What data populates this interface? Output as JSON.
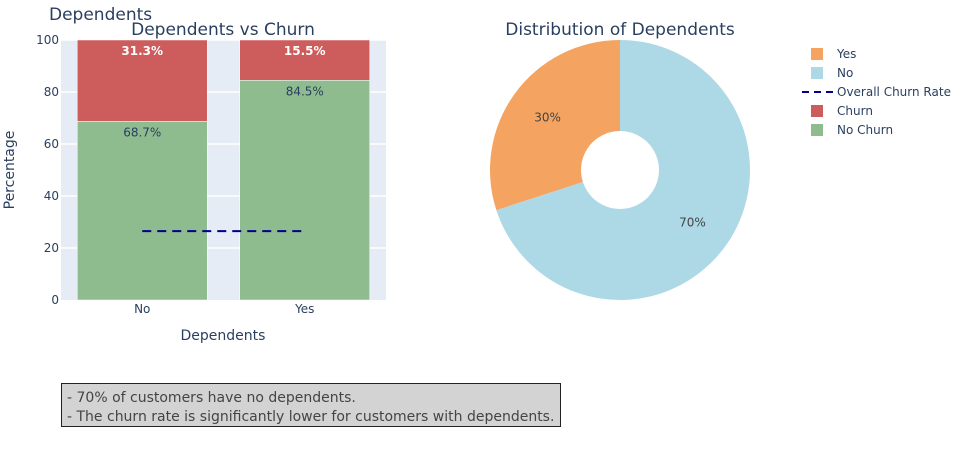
{
  "page": {
    "title": "Dependents"
  },
  "chart_data": [
    {
      "type": "bar",
      "title": "Dependents vs Churn",
      "xlabel": "Dependents",
      "ylabel": "Percentage",
      "categories": [
        "No",
        "Yes"
      ],
      "ylim": [
        0,
        100
      ],
      "yticks": [
        0,
        20,
        40,
        60,
        80,
        100
      ],
      "stacked": true,
      "series": [
        {
          "name": "No Churn",
          "values": [
            68.7,
            84.5
          ],
          "labels": [
            "68.7%",
            "84.5%"
          ],
          "color": "#8fbc8f"
        },
        {
          "name": "Churn",
          "values": [
            31.3,
            15.5
          ],
          "labels": [
            "31.3%",
            "15.5%"
          ],
          "color": "#cd5c5c"
        }
      ],
      "reference_line": {
        "name": "Overall Churn Rate",
        "value": 26.5,
        "color": "#00008b",
        "style": "dashed"
      },
      "grid": true,
      "plot_background": "#e5ecf6"
    },
    {
      "type": "pie",
      "title": "Distribution of Dependents",
      "hole": true,
      "slices": [
        {
          "label": "Yes",
          "value": 30,
          "text": "30%",
          "color": "#f4a460"
        },
        {
          "label": "No",
          "value": 70,
          "text": "70%",
          "color": "#add8e6"
        }
      ]
    }
  ],
  "legend": {
    "placement": "top-right",
    "items": [
      {
        "label": "Yes",
        "kind": "swatch",
        "color": "#f4a460"
      },
      {
        "label": "No",
        "kind": "swatch",
        "color": "#add8e6"
      },
      {
        "label": "Overall Churn Rate",
        "kind": "dash",
        "color": "#00008b"
      },
      {
        "label": "Churn",
        "kind": "swatch",
        "color": "#cd5c5c"
      },
      {
        "label": "No Churn",
        "kind": "swatch",
        "color": "#8fbc8f"
      }
    ]
  },
  "annotation": {
    "lines": [
      "- 70% of customers have no dependents.",
      "- The churn rate is significantly lower for customers with dependents."
    ]
  }
}
